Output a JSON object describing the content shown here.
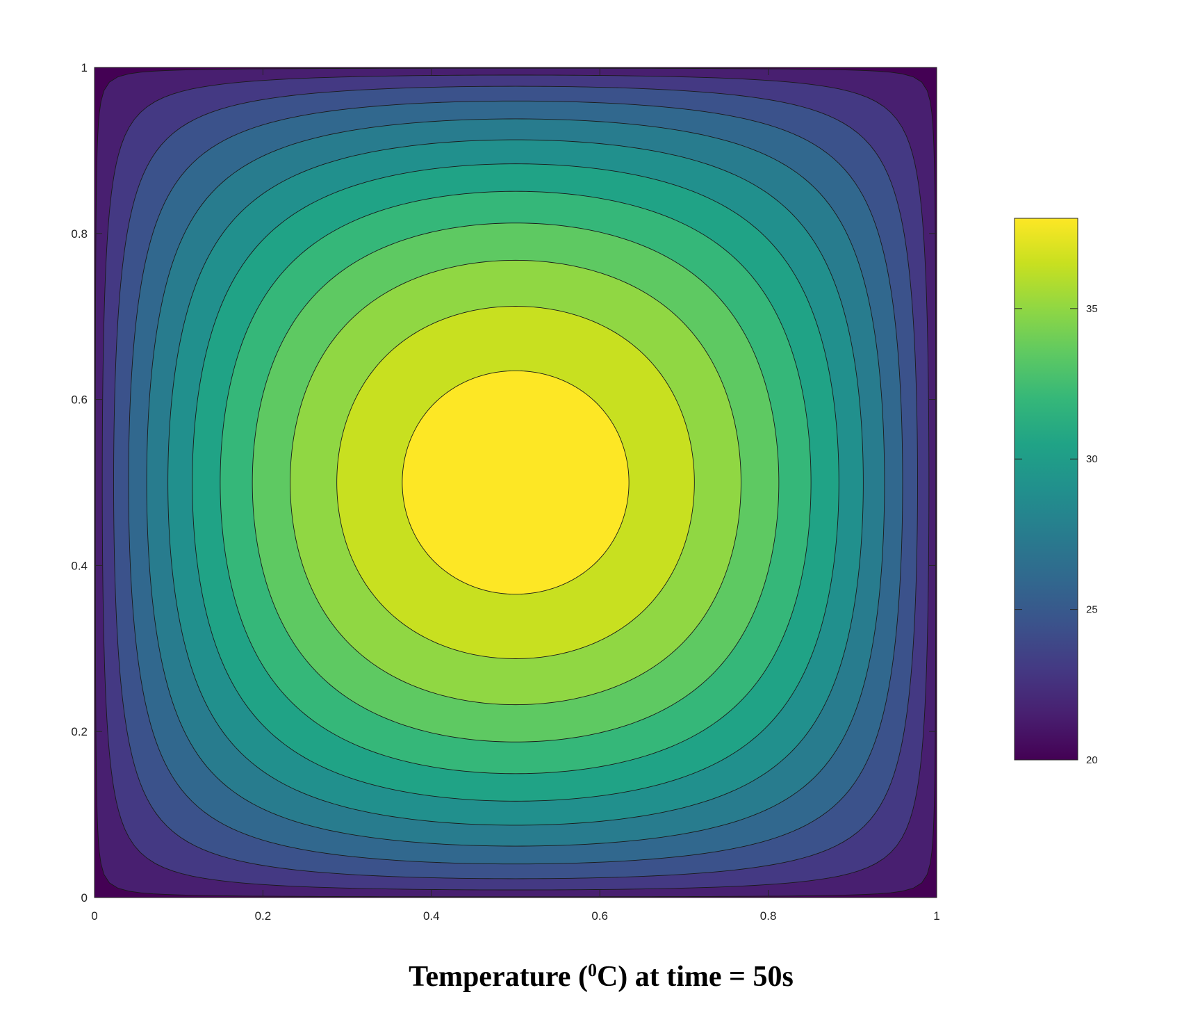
{
  "chart_data": {
    "type": "heatmap",
    "subtype": "filled-contour",
    "title": "Temperature (⁰C) at time = 50s",
    "caption": {
      "prefix": "Temperature (",
      "superscript": "0",
      "suffix": "C) at time = 50s"
    },
    "xlabel": "",
    "ylabel": "",
    "x_range": [
      0,
      1
    ],
    "y_range": [
      0,
      1
    ],
    "x_ticks": [
      0,
      0.2,
      0.4,
      0.6,
      0.8,
      1
    ],
    "y_ticks": [
      0,
      0.2,
      0.4,
      0.6,
      0.8,
      1
    ],
    "x_tick_labels": [
      "0",
      "0.2",
      "0.4",
      "0.6",
      "0.8",
      "1"
    ],
    "y_tick_labels": [
      "0",
      "0.2",
      "0.4",
      "0.6",
      "0.8",
      "1"
    ],
    "grid": false,
    "colormap": "parula-like",
    "colorbar": {
      "placement": "right",
      "range": [
        20,
        38
      ],
      "ticks": [
        20,
        25,
        30,
        35
      ],
      "tick_labels": [
        "20",
        "25",
        "30",
        "35"
      ]
    },
    "field": {
      "description_of_values": "temperature peaks at center (0.5, 0.5), decreasing to 20 at the boundary",
      "center": [
        0.5,
        0.5
      ],
      "max_value": 38,
      "boundary_value": 20
    },
    "contour_levels": [
      20.5,
      22,
      23.5,
      25,
      26.5,
      28,
      29.5,
      31,
      32.5,
      34,
      35.5,
      37
    ],
    "level_colors": [
      "#440154",
      "#481f70",
      "#443983",
      "#3b528b",
      "#31688e",
      "#287c8e",
      "#21908d",
      "#20a386",
      "#35b779",
      "#5ec962",
      "#90d743",
      "#c8e020",
      "#fde725"
    ]
  }
}
